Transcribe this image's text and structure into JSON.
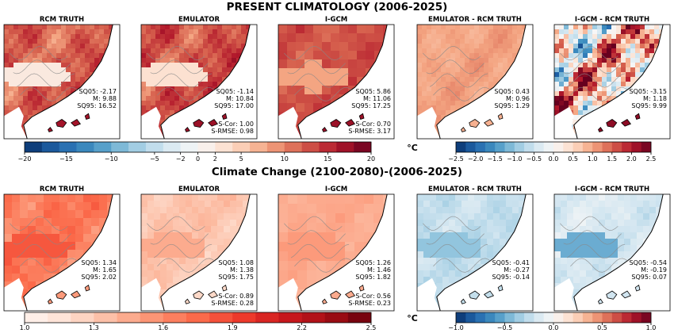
{
  "chart_data": {
    "type": "heatmap",
    "sections": [
      {
        "title": "PRESENT CLIMATOLOGY (2006-2025)",
        "panels": [
          {
            "title": "RCM TRUTH",
            "stats": [
              {
                "label": "SQ05",
                "value": "-2.17"
              },
              {
                "label": "M",
                "value": "9.88"
              },
              {
                "label": "SQ95",
                "value": "16.52"
              }
            ]
          },
          {
            "title": "EMULATOR",
            "stats": [
              {
                "label": "SQ05",
                "value": "-1.14"
              },
              {
                "label": "M",
                "value": "10.84"
              },
              {
                "label": "SQ95",
                "value": "17.00"
              }
            ],
            "scores": [
              {
                "label": "S-Cor",
                "value": "1.00"
              },
              {
                "label": "S-RMSE",
                "value": "0.98"
              }
            ]
          },
          {
            "title": "I-GCM",
            "stats": [
              {
                "label": "SQ05",
                "value": "5.86"
              },
              {
                "label": "M",
                "value": "11.06"
              },
              {
                "label": "SQ95",
                "value": "17.25"
              }
            ],
            "scores": [
              {
                "label": "S-Cor",
                "value": "0.70"
              },
              {
                "label": "S-RMSE",
                "value": "3.17"
              }
            ]
          },
          {
            "title": "EMULATOR - RCM TRUTH",
            "stats": [
              {
                "label": "SQ05",
                "value": "0.43"
              },
              {
                "label": "M",
                "value": "0.96"
              },
              {
                "label": "SQ95",
                "value": "1.29"
              }
            ]
          },
          {
            "title": "I-GCM - RCM TRUTH",
            "stats": [
              {
                "label": "SQ05",
                "value": "-3.15"
              },
              {
                "label": "M",
                "value": "1.18"
              },
              {
                "label": "SQ95",
                "value": "9.99"
              }
            ]
          }
        ],
        "colorbars": [
          {
            "ticks": [
              "−20",
              "−15",
              "−10",
              "−5",
              "−2",
              "0",
              "2",
              "5",
              "10",
              "15",
              "20"
            ],
            "range": [
              -20,
              20
            ],
            "scheme": "diverging",
            "unit": "°C"
          },
          {
            "ticks": [
              "−2.5",
              "−2.0",
              "−1.5",
              "−1.0",
              "−0.5",
              "0.0",
              "0.5",
              "1.0",
              "1.5",
              "2.0",
              "2.5"
            ],
            "range": [
              -2.5,
              2.5
            ],
            "scheme": "diverging"
          }
        ]
      },
      {
        "title": "Climate Change (2100-2080)-(2006-2025)",
        "panels": [
          {
            "title": "RCM TRUTH",
            "stats": [
              {
                "label": "SQ05",
                "value": "1.34"
              },
              {
                "label": "M",
                "value": "1.65"
              },
              {
                "label": "SQ95",
                "value": "2.02"
              }
            ]
          },
          {
            "title": "EMULATOR",
            "stats": [
              {
                "label": "SQ05",
                "value": "1.08"
              },
              {
                "label": "M",
                "value": "1.38"
              },
              {
                "label": "SQ95",
                "value": "1.75"
              }
            ],
            "scores": [
              {
                "label": "S-Cor",
                "value": "0.89"
              },
              {
                "label": "S-RMSE",
                "value": "0.28"
              }
            ]
          },
          {
            "title": "I-GCM",
            "stats": [
              {
                "label": "SQ05",
                "value": "1.26"
              },
              {
                "label": "M",
                "value": "1.46"
              },
              {
                "label": "SQ95",
                "value": "1.82"
              }
            ],
            "scores": [
              {
                "label": "S-Cor",
                "value": "0.56"
              },
              {
                "label": "S-RMSE",
                "value": "0.23"
              }
            ]
          },
          {
            "title": "EMULATOR - RCM TRUTH",
            "stats": [
              {
                "label": "SQ05",
                "value": "-0.41"
              },
              {
                "label": "M",
                "value": "-0.27"
              },
              {
                "label": "SQ95",
                "value": "-0.14"
              }
            ]
          },
          {
            "title": "I-GCM - RCM TRUTH",
            "stats": [
              {
                "label": "SQ05",
                "value": "-0.54"
              },
              {
                "label": "M",
                "value": "-0.19"
              },
              {
                "label": "SQ95",
                "value": "0.07"
              }
            ]
          }
        ],
        "colorbars": [
          {
            "ticks": [
              "1.0",
              "1.3",
              "1.6",
              "1.9",
              "2.2",
              "2.5"
            ],
            "range": [
              1.0,
              2.5
            ],
            "scheme": "sequential"
          },
          {
            "ticks": [
              "−1.0",
              "−0.5",
              "0.0",
              "0.5",
              "1.0"
            ],
            "range": [
              -1.0,
              1.0
            ],
            "scheme": "diverging",
            "unit": "°C"
          }
        ]
      }
    ]
  }
}
